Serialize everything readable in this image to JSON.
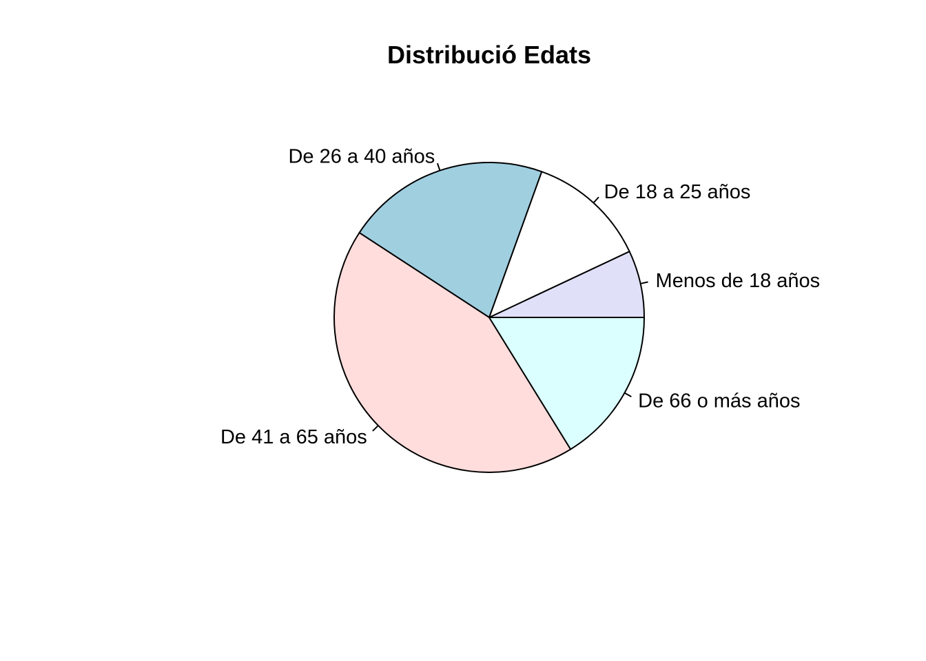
{
  "chart_data": {
    "type": "pie",
    "title": "Distribució Edats",
    "slices": [
      {
        "label": "Menos de 18 años",
        "value": 7,
        "color": "#E0E0F9"
      },
      {
        "label": "De 18 a 25 años",
        "value": 12.5,
        "color": "#FFFFFF"
      },
      {
        "label": "De 26 a 40 años",
        "value": 21.3,
        "color": "#A0CFE0"
      },
      {
        "label": "De 41 a 65 años",
        "value": 43,
        "color": "#FFDDDC"
      },
      {
        "label": "De 66 o más años",
        "value": 16.2,
        "color": "#DBFFFF"
      }
    ],
    "start_angle_deg": 0,
    "direction": "counterclockwise"
  }
}
